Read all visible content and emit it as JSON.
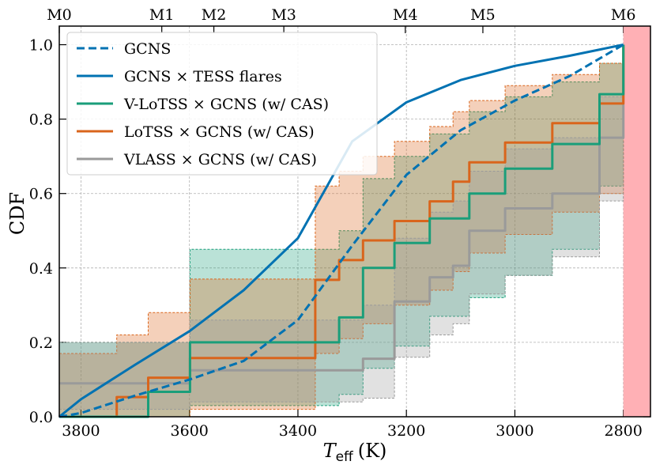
{
  "chart_data": {
    "type": "line",
    "x_label": {
      "symbol": "T",
      "subscript": "eff",
      "unit": "(K)"
    },
    "y_label": "CDF",
    "xlim": [
      3840,
      2750
    ],
    "ylim": [
      0,
      1.05
    ],
    "xticks": [
      3800,
      3600,
      3400,
      3200,
      3000,
      2800
    ],
    "yticks": [
      {
        "value": 0,
        "label": "0.0"
      },
      0.2,
      0.4,
      0.6,
      0.8,
      {
        "value": 1,
        "label": "1.0"
      }
    ],
    "x2ticks": [
      {
        "value": 3840,
        "label": "M0"
      },
      {
        "value": 3651,
        "label": "M1"
      },
      {
        "value": 3555,
        "label": "M2"
      },
      {
        "value": 3426,
        "label": "M3"
      },
      {
        "value": 3202,
        "label": "M4"
      },
      {
        "value": 3059,
        "label": "M5"
      },
      {
        "value": 2800,
        "label": "M6"
      }
    ],
    "grid": true,
    "legend": "upper left",
    "shade_x": [
      2800,
      2750
    ],
    "shade_color": "#ffb0b5",
    "series": [
      {
        "name": "GCNS",
        "color": "#0072b2",
        "style": "dashed",
        "x": [
          3840,
          3800,
          3700,
          3600,
          3500,
          3400,
          3300,
          3200,
          3100,
          3000,
          2900,
          2800
        ],
        "values": [
          0,
          0.01,
          0.057,
          0.1,
          0.15,
          0.26,
          0.46,
          0.65,
          0.77,
          0.85,
          0.915,
          1.0
        ]
      },
      {
        "name": "GCNS × TESS flares",
        "color": "#0072b2",
        "style": "solid",
        "x": [
          3840,
          3800,
          3700,
          3600,
          3500,
          3400,
          3300,
          3200,
          3100,
          3000,
          2900,
          2800
        ],
        "values": [
          0,
          0.047,
          0.14,
          0.23,
          0.34,
          0.48,
          0.74,
          0.845,
          0.905,
          0.943,
          0.97,
          1.0
        ]
      },
      {
        "name": "V-LoTSS × GCNS (w/ CAS)",
        "color": "#1a9e7a",
        "style": "step",
        "x": [
          3840,
          3676,
          3599,
          3324,
          3280,
          3222,
          3157,
          3084,
          3018,
          2931,
          2844,
          2800
        ],
        "values": [
          0,
          0.067,
          0.2,
          0.267,
          0.4,
          0.467,
          0.533,
          0.6,
          0.667,
          0.733,
          0.867,
          1.0
        ],
        "upper": [
          0.2,
          0.2,
          0.45,
          0.5,
          0.64,
          0.7,
          0.76,
          0.82,
          0.86,
          0.9,
          0.95,
          1.0
        ],
        "lower": [
          0,
          0,
          0.03,
          0.06,
          0.13,
          0.19,
          0.27,
          0.32,
          0.38,
          0.45,
          0.62,
          0.8
        ]
      },
      {
        "name": "LoTSS × GCNS (w/ CAS)",
        "color": "#d9651c",
        "style": "step",
        "x": [
          3840,
          3734,
          3676,
          3599,
          3368,
          3324,
          3280,
          3222,
          3157,
          3114,
          3084,
          3018,
          2931,
          2844,
          2800
        ],
        "values": [
          0,
          0.053,
          0.105,
          0.158,
          0.368,
          0.421,
          0.474,
          0.526,
          0.579,
          0.632,
          0.684,
          0.737,
          0.789,
          0.842,
          1.0
        ],
        "upper": [
          0.17,
          0.22,
          0.28,
          0.37,
          0.62,
          0.66,
          0.7,
          0.74,
          0.78,
          0.82,
          0.85,
          0.89,
          0.92,
          0.95,
          1.0
        ],
        "lower": [
          0,
          0,
          0,
          0.02,
          0.17,
          0.21,
          0.25,
          0.3,
          0.34,
          0.39,
          0.44,
          0.49,
          0.55,
          0.6,
          0.8
        ]
      },
      {
        "name": "VLASS × GCNS (w/ CAS)",
        "color": "#9a9a9a",
        "style": "step",
        "x": [
          3840,
          3599,
          3280,
          3222,
          3157,
          3114,
          3084,
          3018,
          2931,
          2844,
          2800
        ],
        "values": [
          0.09,
          0.125,
          0.156,
          0.31,
          0.375,
          0.406,
          0.5,
          0.56,
          0.6,
          0.75,
          1.0
        ],
        "upper": [
          0.2,
          0.26,
          0.3,
          0.48,
          0.55,
          0.58,
          0.66,
          0.72,
          0.75,
          0.86,
          1.0
        ],
        "lower": [
          0.02,
          0.04,
          0.05,
          0.16,
          0.22,
          0.25,
          0.33,
          0.38,
          0.43,
          0.58,
          0.8
        ]
      }
    ]
  }
}
